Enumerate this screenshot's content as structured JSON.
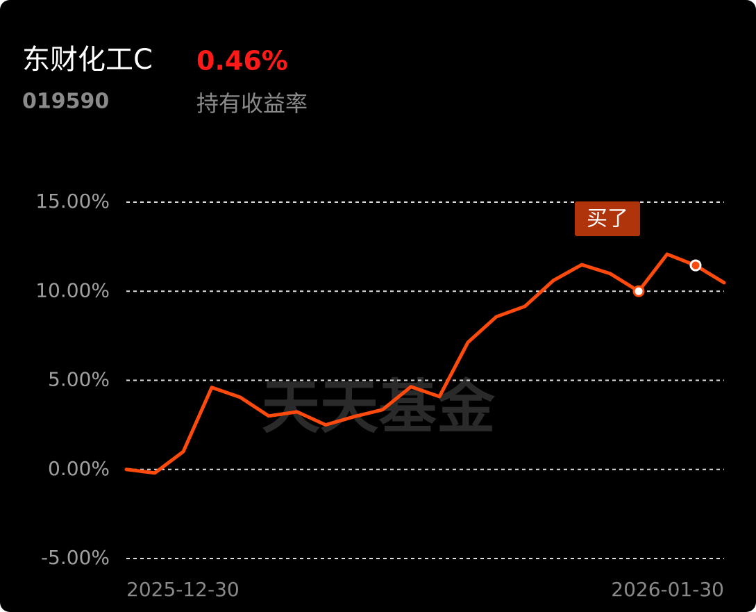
{
  "title": "东财化工C",
  "fund_code": "019590",
  "return_value": "0.46%",
  "return_label": "持有收益率",
  "watermark": "天天基金",
  "chart_data": {
    "type": "line",
    "categories": [
      "2025-12-30",
      null,
      null,
      null,
      null,
      null,
      null,
      null,
      null,
      null,
      null,
      null,
      null,
      null,
      null,
      null,
      null,
      null,
      null,
      null,
      null,
      "2026-01-30"
    ],
    "series": [
      {
        "color": "#ff4a0d",
        "values": [
          0,
          -0.2,
          1.0,
          4.6,
          4.05,
          3.0,
          3.23,
          2.5,
          2.96,
          3.35,
          4.64,
          4.09,
          7.13,
          8.57,
          9.15,
          10.6,
          11.49,
          10.99,
          10.0,
          12.08,
          11.45,
          10.48
        ]
      }
    ],
    "ylim": [
      -5,
      15
    ],
    "yticks": [
      {
        "value": -5,
        "label": "-5.00%"
      },
      {
        "value": 0,
        "label": "0.00%"
      },
      {
        "value": 5,
        "label": "5.00%"
      },
      {
        "value": 10,
        "label": "10.00%"
      },
      {
        "value": 15,
        "label": "15.00%"
      }
    ],
    "grid": true,
    "annotations": [
      {
        "text": "买了",
        "index": 18
      }
    ],
    "markers": [
      {
        "index": 18,
        "style": "hollow"
      },
      {
        "index": 20,
        "style": "filled"
      }
    ]
  }
}
